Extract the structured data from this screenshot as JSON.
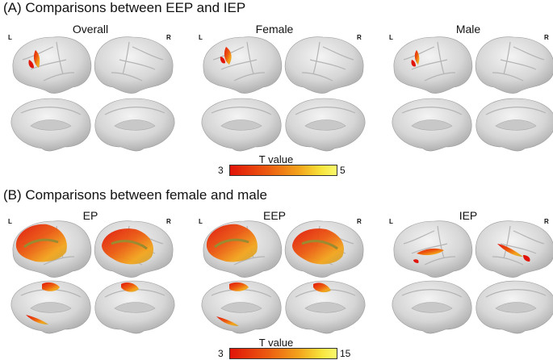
{
  "section_a": {
    "title": "(A) Comparisons between EEP and IEP",
    "panels": [
      {
        "label": "Overall",
        "left_tag": "L",
        "right_tag": "R"
      },
      {
        "label": "Female",
        "left_tag": "L",
        "right_tag": "R"
      },
      {
        "label": "Male",
        "left_tag": "L",
        "right_tag": "R"
      }
    ],
    "colorbar": {
      "title": "T value",
      "min": "3",
      "max": "5"
    }
  },
  "section_b": {
    "title": "(B) Comparisons between female and male",
    "panels": [
      {
        "label": "EP",
        "left_tag": "L",
        "right_tag": "R"
      },
      {
        "label": "EEP",
        "left_tag": "L",
        "right_tag": "R"
      },
      {
        "label": "IEP",
        "left_tag": "L",
        "right_tag": "R"
      }
    ],
    "colorbar": {
      "title": "T value",
      "min": "3",
      "max": "15"
    }
  },
  "colors": {
    "low": "#e11409",
    "mid": "#f3a51c",
    "high": "#fafa6e",
    "brain": "#d9d9d9"
  }
}
